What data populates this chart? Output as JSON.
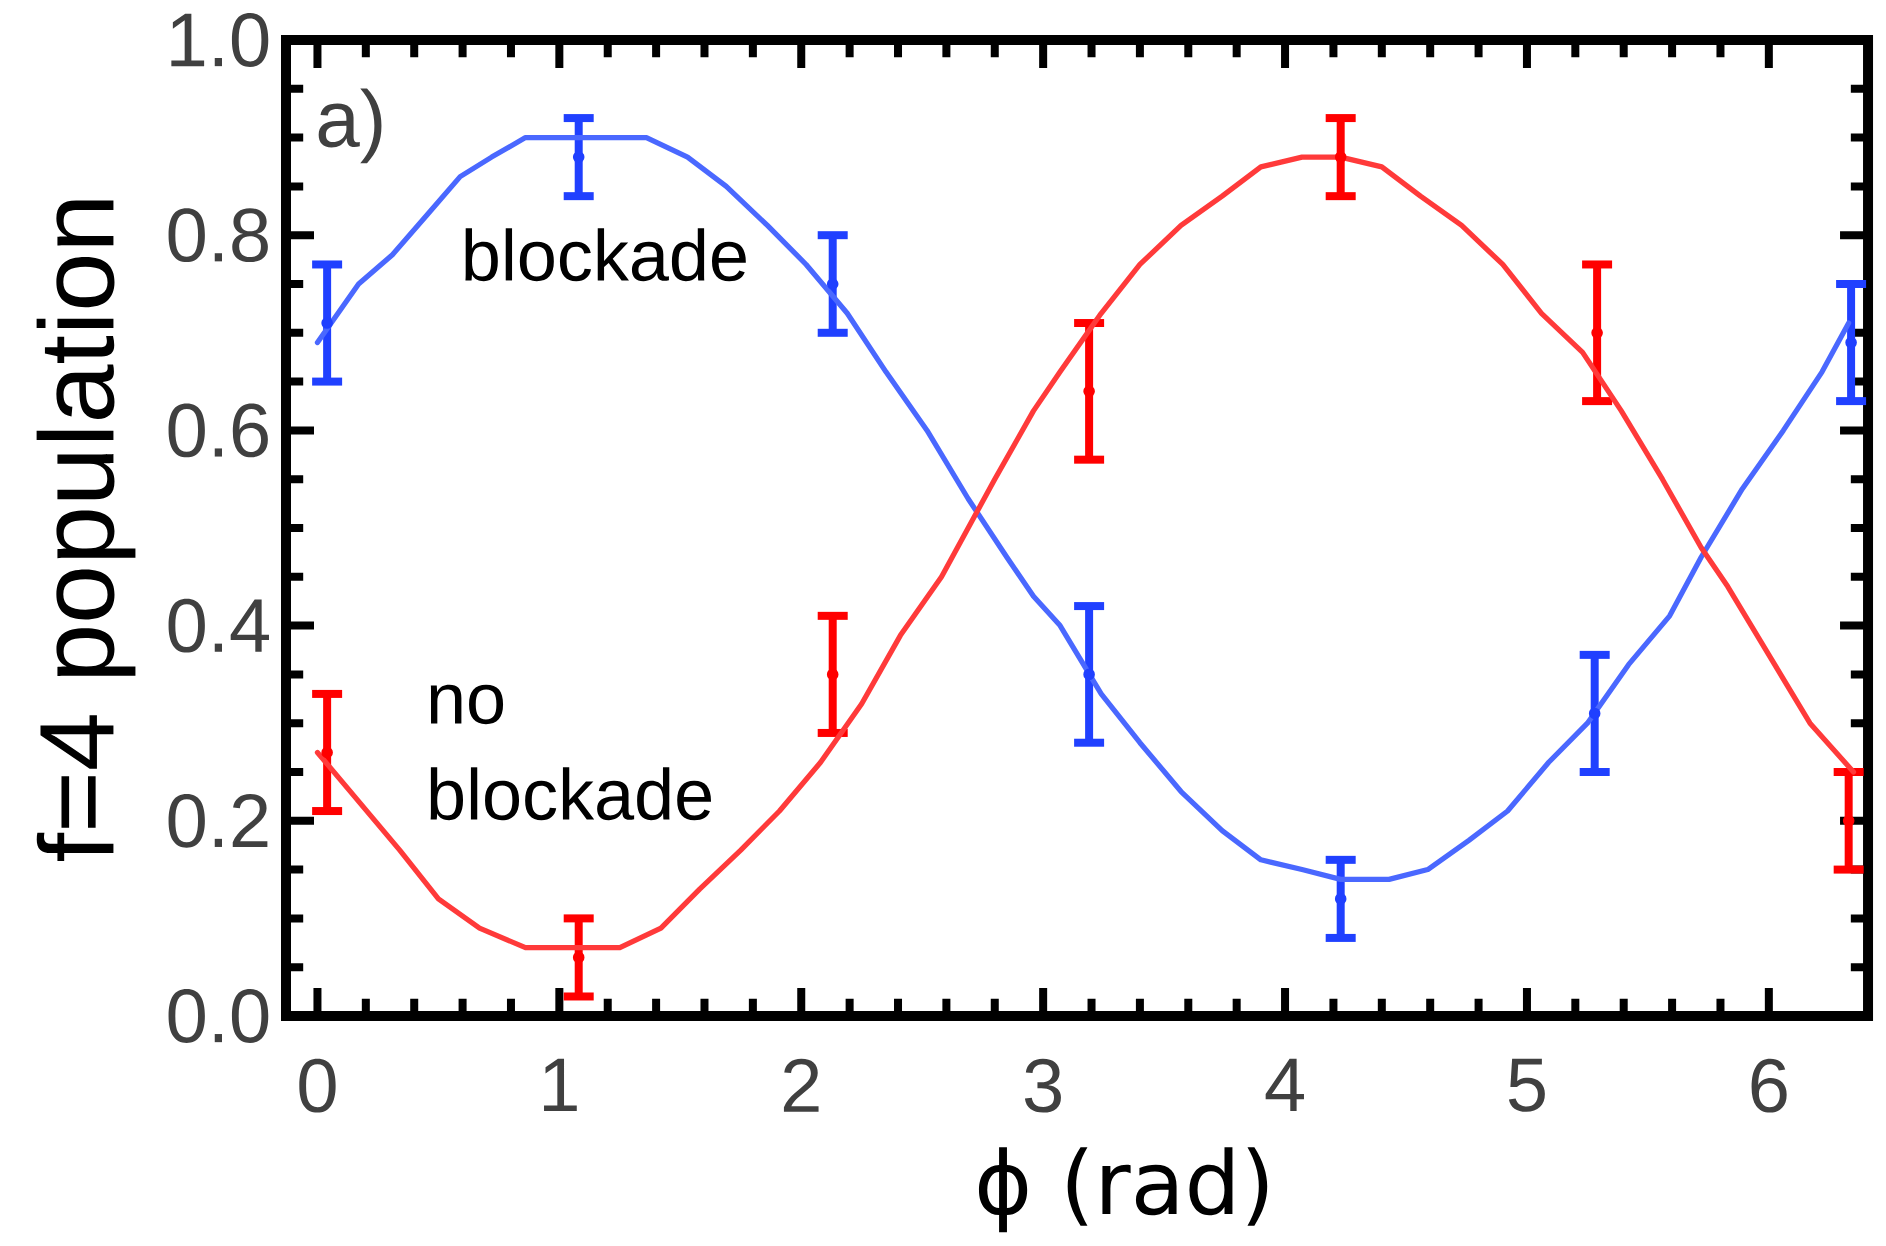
{
  "chart_data": {
    "type": "scatter",
    "xlabel": "ϕ (rad)",
    "ylabel": "f=4 population",
    "annotations": [
      "a)"
    ],
    "xlim": [
      -0.13,
      6.41
    ],
    "ylim": [
      0,
      1
    ],
    "xticks": [
      0,
      1,
      2,
      3,
      4,
      5,
      6
    ],
    "yticks": [
      {
        "value": 0,
        "label": "0.0"
      },
      0.2,
      0.4,
      0.6,
      0.8,
      {
        "value": 1,
        "label": "1.0"
      }
    ],
    "marker": "circle",
    "series": [
      {
        "color": "#2040ff",
        "x": [
          0.04,
          1.08,
          2.13,
          3.19,
          4.23,
          5.28,
          6.34
        ],
        "values": [
          0.71,
          0.88,
          0.75,
          0.35,
          0.12,
          0.31,
          0.69
        ],
        "errors": [
          0.06,
          0.04,
          0.05,
          0.07,
          0.04,
          0.06,
          0.06
        ]
      },
      {
        "name": "blockade",
        "type": "line",
        "marker": "none",
        "color": "#4a68ff",
        "x": [
          0.0,
          0.17,
          0.31,
          0.45,
          0.59,
          0.72,
          0.86,
          1.0,
          1.19,
          1.36,
          1.53,
          1.69,
          1.86,
          2.02,
          2.19,
          2.35,
          2.52,
          2.69,
          2.85,
          2.96,
          3.07,
          3.24,
          3.4,
          3.57,
          3.74,
          3.9,
          4.07,
          4.23,
          4.43,
          4.59,
          4.76,
          4.92,
          5.09,
          5.25,
          5.42,
          5.59,
          5.72,
          5.89,
          6.06,
          6.22,
          6.33
        ],
        "values": [
          0.69,
          0.75,
          0.78,
          0.82,
          0.86,
          0.88,
          0.9,
          0.9,
          0.9,
          0.9,
          0.88,
          0.85,
          0.81,
          0.77,
          0.72,
          0.66,
          0.6,
          0.53,
          0.47,
          0.43,
          0.4,
          0.33,
          0.28,
          0.23,
          0.19,
          0.16,
          0.15,
          0.14,
          0.14,
          0.15,
          0.18,
          0.21,
          0.26,
          0.3,
          0.36,
          0.41,
          0.47,
          0.54,
          0.6,
          0.66,
          0.71
        ]
      },
      {
        "color": "#ff0000",
        "x": [
          0.04,
          1.08,
          2.13,
          3.19,
          4.23,
          5.29,
          6.33
        ],
        "values": [
          0.27,
          0.06,
          0.35,
          0.64,
          0.88,
          0.7,
          0.2
        ],
        "errors": [
          0.06,
          0.04,
          0.06,
          0.07,
          0.04,
          0.07,
          0.05
        ]
      },
      {
        "name": "no blockade",
        "type": "line",
        "marker": "none",
        "color": "#ff3a3a",
        "x": [
          0.0,
          0.17,
          0.34,
          0.5,
          0.67,
          0.86,
          1.06,
          1.25,
          1.42,
          1.58,
          1.75,
          1.91,
          2.08,
          2.25,
          2.41,
          2.58,
          2.8,
          2.96,
          3.07,
          3.24,
          3.4,
          3.57,
          3.74,
          3.9,
          4.07,
          4.23,
          4.4,
          4.56,
          4.73,
          4.9,
          5.06,
          5.23,
          5.39,
          5.56,
          5.72,
          5.83,
          6.0,
          6.17,
          6.35
        ],
        "values": [
          0.27,
          0.22,
          0.17,
          0.12,
          0.09,
          0.07,
          0.07,
          0.07,
          0.09,
          0.13,
          0.17,
          0.21,
          0.26,
          0.32,
          0.39,
          0.45,
          0.55,
          0.62,
          0.66,
          0.72,
          0.77,
          0.81,
          0.84,
          0.87,
          0.88,
          0.88,
          0.87,
          0.84,
          0.81,
          0.77,
          0.72,
          0.68,
          0.62,
          0.55,
          0.48,
          0.44,
          0.37,
          0.3,
          0.25
        ]
      }
    ]
  }
}
